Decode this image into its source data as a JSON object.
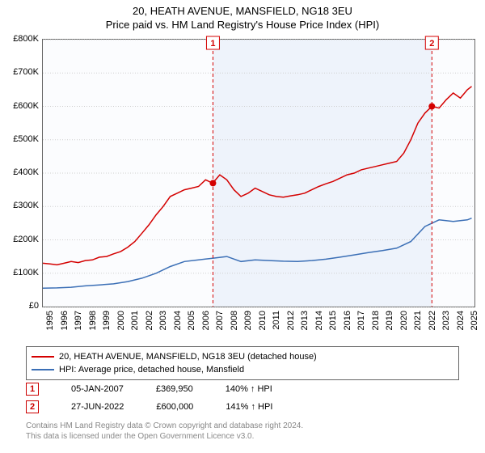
{
  "title": {
    "line1": "20, HEATH AVENUE, MANSFIELD, NG18 3EU",
    "line2": "Price paid vs. HM Land Registry's House Price Index (HPI)",
    "fontsize": 13,
    "color": "#000000"
  },
  "chart": {
    "type": "line",
    "background_color": "#fbfcfe",
    "highlight_band": {
      "x_from": 2007.02,
      "x_to": 2022.49,
      "fill": "#eef3fb"
    },
    "border_color": "#666666",
    "xlim": [
      1995,
      2025.5
    ],
    "ylim": [
      0,
      800000
    ],
    "ytick_step": 100000,
    "ytick_labels": [
      "£0",
      "£100K",
      "£200K",
      "£300K",
      "£400K",
      "£500K",
      "£600K",
      "£700K",
      "£800K"
    ],
    "xtick_step": 1,
    "xtick_labels": [
      "1995",
      "1996",
      "1997",
      "1998",
      "1999",
      "2000",
      "2001",
      "2002",
      "2003",
      "2004",
      "2005",
      "2006",
      "2007",
      "2008",
      "2009",
      "2010",
      "2011",
      "2012",
      "2013",
      "2014",
      "2015",
      "2016",
      "2017",
      "2018",
      "2019",
      "2020",
      "2021",
      "2022",
      "2023",
      "2024",
      "2025"
    ],
    "grid_color": "#cfcfcf",
    "grid_style": "dotted",
    "axis_label_fontsize": 11,
    "series": [
      {
        "name": "20, HEATH AVENUE, MANSFIELD, NG18 3EU (detached house)",
        "color": "#d40000",
        "line_width": 1.5,
        "x": [
          1995,
          1995.5,
          1996,
          1996.5,
          1997,
          1997.5,
          1998,
          1998.5,
          1999,
          1999.5,
          2000,
          2000.5,
          2001,
          2001.5,
          2002,
          2002.5,
          2003,
          2003.5,
          2004,
          2004.5,
          2005,
          2005.5,
          2006,
          2006.5,
          2007,
          2007.5,
          2008,
          2008.5,
          2009,
          2009.5,
          2010,
          2010.5,
          2011,
          2011.5,
          2012,
          2012.5,
          2013,
          2013.5,
          2014,
          2014.5,
          2015,
          2015.5,
          2016,
          2016.5,
          2017,
          2017.5,
          2018,
          2018.5,
          2019,
          2019.5,
          2020,
          2020.5,
          2021,
          2021.5,
          2022,
          2022.49,
          2023,
          2023.5,
          2024,
          2024.5,
          2025,
          2025.3
        ],
        "y": [
          130000,
          128000,
          125000,
          130000,
          135000,
          132000,
          138000,
          140000,
          148000,
          150000,
          158000,
          165000,
          178000,
          195000,
          220000,
          245000,
          275000,
          300000,
          330000,
          340000,
          350000,
          355000,
          360000,
          380000,
          369950,
          395000,
          380000,
          350000,
          330000,
          340000,
          355000,
          345000,
          335000,
          330000,
          328000,
          332000,
          335000,
          340000,
          350000,
          360000,
          368000,
          375000,
          385000,
          395000,
          400000,
          410000,
          415000,
          420000,
          425000,
          430000,
          435000,
          460000,
          500000,
          550000,
          580000,
          600000,
          595000,
          620000,
          640000,
          625000,
          650000,
          660000
        ]
      },
      {
        "name": "HPI: Average price, detached house, Mansfield",
        "color": "#3b6fb6",
        "line_width": 1.5,
        "x": [
          1995,
          1996,
          1997,
          1998,
          1999,
          2000,
          2001,
          2002,
          2003,
          2004,
          2005,
          2006,
          2007,
          2008,
          2009,
          2010,
          2011,
          2012,
          2013,
          2014,
          2015,
          2016,
          2017,
          2018,
          2019,
          2020,
          2021,
          2022,
          2023,
          2024,
          2025,
          2025.3
        ],
        "y": [
          55000,
          56000,
          58000,
          62000,
          65000,
          68000,
          75000,
          85000,
          100000,
          120000,
          135000,
          140000,
          145000,
          150000,
          135000,
          140000,
          138000,
          136000,
          135000,
          138000,
          142000,
          148000,
          155000,
          162000,
          168000,
          175000,
          195000,
          240000,
          260000,
          255000,
          260000,
          265000
        ]
      }
    ],
    "sale_markers": [
      {
        "badge": "1",
        "x": 2007.02,
        "y": 369950,
        "line_color": "#d40000",
        "line_dash": "4,3",
        "dot_color": "#d40000",
        "label_y_offset": -6
      },
      {
        "badge": "2",
        "x": 2022.49,
        "y": 600000,
        "line_color": "#d40000",
        "line_dash": "4,3",
        "dot_color": "#d40000",
        "label_y_offset": -6
      }
    ]
  },
  "legend": {
    "border_color": "#666666",
    "background": "#ffffff",
    "fontsize": 11,
    "items": [
      {
        "color": "#d40000",
        "label": "20, HEATH AVENUE, MANSFIELD, NG18 3EU (detached house)"
      },
      {
        "color": "#3b6fb6",
        "label": "HPI: Average price, detached house, Mansfield"
      }
    ]
  },
  "sales_table": {
    "fontsize": 11,
    "badge_border": "#c00000",
    "badge_text_color": "#c00000",
    "rows": [
      {
        "badge": "1",
        "date": "05-JAN-2007",
        "price": "£369,950",
        "delta": "140% ↑ HPI"
      },
      {
        "badge": "2",
        "date": "27-JUN-2022",
        "price": "£600,000",
        "delta": "141% ↑ HPI"
      }
    ]
  },
  "footer": {
    "line1": "Contains HM Land Registry data © Crown copyright and database right 2024.",
    "line2": "This data is licensed under the Open Government Licence v3.0.",
    "fontsize": 10,
    "color": "#888888"
  }
}
